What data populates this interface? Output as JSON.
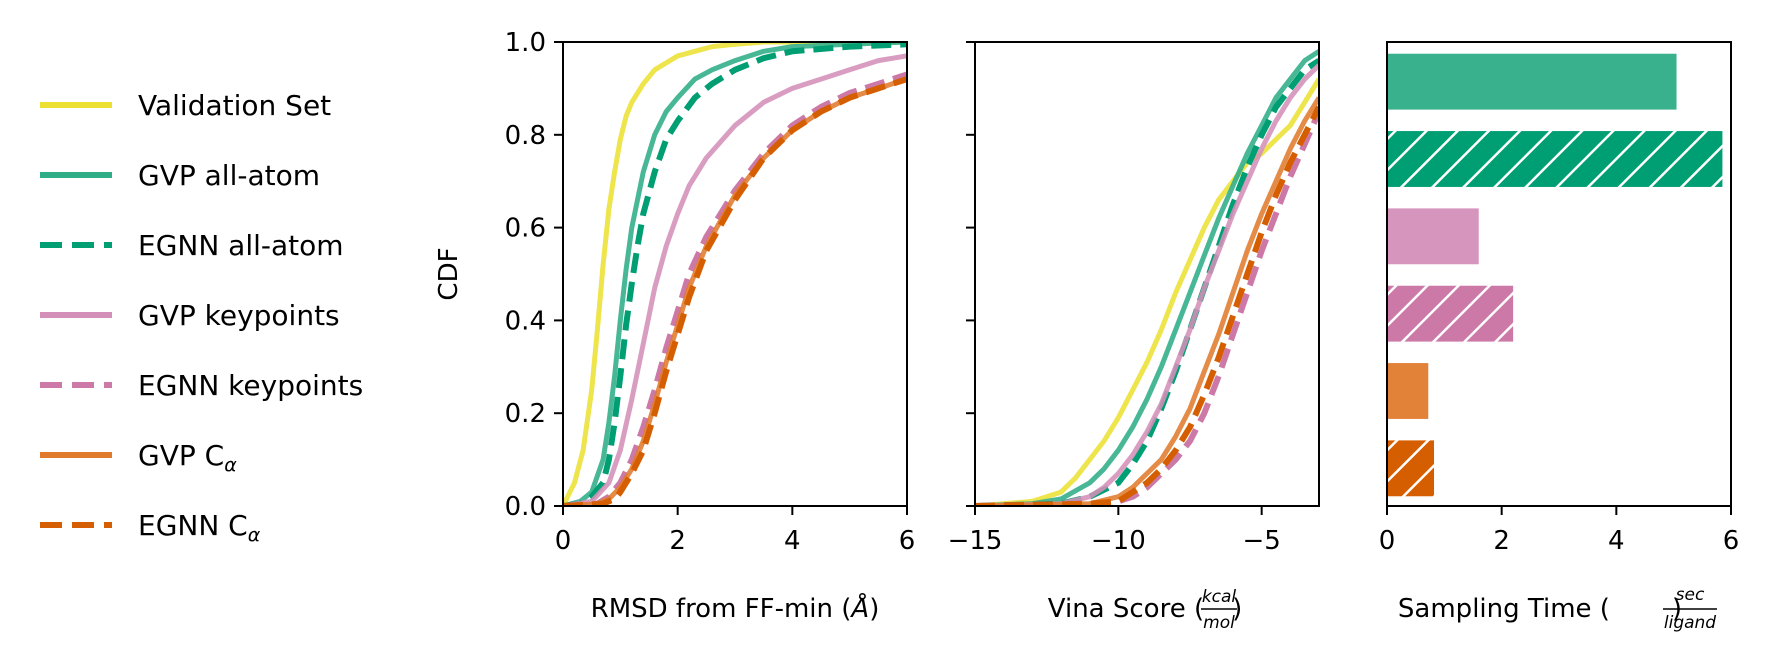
{
  "legend": {
    "entries": [
      {
        "key": "validation",
        "label": "Validation Set",
        "color": "#ECE032",
        "dash": false
      },
      {
        "key": "gvp_all",
        "label": "GVP all-atom",
        "color": "#2EAD87",
        "dash": false
      },
      {
        "key": "egnn_all",
        "label": "EGNN all-atom",
        "color": "#009E73",
        "dash": true
      },
      {
        "key": "gvp_kp",
        "label": "GVP keypoints",
        "color": "#D48FB8",
        "dash": false
      },
      {
        "key": "egnn_kp",
        "label": "EGNN keypoints",
        "color": "#CC79A7",
        "dash": true
      },
      {
        "key": "gvp_ca",
        "label": "GVP C",
        "sub": "α",
        "color": "#E07B2E",
        "dash": false
      },
      {
        "key": "egnn_ca",
        "label": "EGNN C",
        "sub": "α",
        "color": "#D55E00",
        "dash": true
      }
    ]
  },
  "chart_data": [
    {
      "type": "line",
      "title": "",
      "xlabel": "RMSD from FF-min (Å)",
      "xlabel_main": "RMSD from FF-min (",
      "xlabel_unit": "Å",
      "xlabel_close": ")",
      "ylabel": "CDF",
      "xlim": [
        0,
        6
      ],
      "ylim": [
        0,
        1
      ],
      "xticks": [
        0,
        2,
        4,
        6
      ],
      "xtick_labels": [
        "0",
        "2",
        "4",
        "6"
      ],
      "yticks": [
        0,
        0.2,
        0.4,
        0.6,
        0.8,
        1.0
      ],
      "ytick_labels": [
        "0.0",
        "0.2",
        "0.4",
        "0.6",
        "0.8",
        "1.0"
      ],
      "series": [
        {
          "key": "validation",
          "x": [
            0,
            0.2,
            0.35,
            0.5,
            0.6,
            0.7,
            0.8,
            0.9,
            1.0,
            1.1,
            1.2,
            1.4,
            1.6,
            1.8,
            2.0,
            2.3,
            2.6,
            3.0,
            3.5,
            4.0,
            6.0
          ],
          "y": [
            0,
            0.05,
            0.12,
            0.25,
            0.38,
            0.52,
            0.64,
            0.72,
            0.79,
            0.84,
            0.87,
            0.91,
            0.94,
            0.955,
            0.97,
            0.98,
            0.99,
            0.995,
            1.0,
            1.0,
            1.0
          ]
        },
        {
          "key": "gvp_all",
          "x": [
            0,
            0.3,
            0.5,
            0.7,
            0.8,
            0.9,
            1.0,
            1.1,
            1.2,
            1.4,
            1.6,
            1.8,
            2.0,
            2.3,
            2.6,
            3.0,
            3.5,
            4.0,
            5.0,
            6.0
          ],
          "y": [
            0,
            0.01,
            0.03,
            0.1,
            0.18,
            0.28,
            0.4,
            0.51,
            0.6,
            0.72,
            0.8,
            0.85,
            0.88,
            0.92,
            0.94,
            0.96,
            0.98,
            0.99,
            0.995,
            1.0
          ]
        },
        {
          "key": "egnn_all",
          "x": [
            0,
            0.3,
            0.5,
            0.7,
            0.8,
            0.9,
            1.0,
            1.1,
            1.2,
            1.3,
            1.4,
            1.6,
            1.8,
            2.0,
            2.3,
            2.6,
            3.0,
            3.5,
            4.0,
            5.0,
            6.0
          ],
          "y": [
            0,
            0.005,
            0.02,
            0.05,
            0.1,
            0.18,
            0.28,
            0.39,
            0.48,
            0.56,
            0.63,
            0.72,
            0.79,
            0.83,
            0.88,
            0.91,
            0.94,
            0.965,
            0.98,
            0.99,
            0.995
          ]
        },
        {
          "key": "gvp_kp",
          "x": [
            0,
            0.5,
            0.8,
            1.0,
            1.2,
            1.4,
            1.6,
            1.8,
            2.0,
            2.2,
            2.5,
            3.0,
            3.5,
            4.0,
            4.5,
            5.0,
            5.5,
            6.0
          ],
          "y": [
            0,
            0.01,
            0.05,
            0.12,
            0.23,
            0.35,
            0.47,
            0.56,
            0.63,
            0.69,
            0.75,
            0.82,
            0.87,
            0.9,
            0.92,
            0.94,
            0.96,
            0.97
          ]
        },
        {
          "key": "egnn_kp",
          "x": [
            0,
            0.6,
            0.8,
            1.0,
            1.2,
            1.4,
            1.6,
            1.8,
            2.0,
            2.2,
            2.5,
            3.0,
            3.5,
            4.0,
            4.5,
            5.0,
            5.5,
            6.0
          ],
          "y": [
            0,
            0.005,
            0.02,
            0.05,
            0.1,
            0.17,
            0.25,
            0.34,
            0.42,
            0.5,
            0.58,
            0.68,
            0.76,
            0.82,
            0.86,
            0.89,
            0.91,
            0.93
          ]
        },
        {
          "key": "gvp_ca",
          "x": [
            0,
            0.6,
            0.8,
            1.0,
            1.2,
            1.4,
            1.6,
            1.8,
            2.0,
            2.2,
            2.5,
            3.0,
            3.5,
            4.0,
            4.5,
            5.0,
            5.5,
            6.0
          ],
          "y": [
            0,
            0.005,
            0.015,
            0.04,
            0.08,
            0.14,
            0.22,
            0.31,
            0.39,
            0.47,
            0.56,
            0.67,
            0.75,
            0.81,
            0.85,
            0.88,
            0.9,
            0.92
          ]
        },
        {
          "key": "egnn_ca",
          "x": [
            0,
            0.7,
            0.9,
            1.0,
            1.2,
            1.4,
            1.6,
            1.8,
            2.0,
            2.2,
            2.5,
            3.0,
            3.5,
            4.0,
            4.5,
            5.0,
            5.5,
            6.0
          ],
          "y": [
            0,
            0.005,
            0.015,
            0.03,
            0.07,
            0.12,
            0.2,
            0.29,
            0.37,
            0.45,
            0.55,
            0.66,
            0.75,
            0.81,
            0.85,
            0.88,
            0.9,
            0.92
          ]
        }
      ]
    },
    {
      "type": "line",
      "title": "",
      "xlabel": "Vina Score (kcal/mol)",
      "xlabel_main": "Vina Score (",
      "xlabel_num": "kcal",
      "xlabel_den": "mol",
      "xlabel_close": ")",
      "xlim": [
        -15,
        -3
      ],
      "ylim": [
        0,
        1
      ],
      "xticks": [
        -15,
        -10,
        -5
      ],
      "xtick_labels": [
        "−15",
        "−10",
        "−5"
      ],
      "yticks": [
        0,
        0.2,
        0.4,
        0.6,
        0.8,
        1.0
      ],
      "series": [
        {
          "key": "validation",
          "x": [
            -15,
            -13,
            -12,
            -11.5,
            -11,
            -10.5,
            -10,
            -9.5,
            -9,
            -8.5,
            -8,
            -7.5,
            -7,
            -6.5,
            -6,
            -5.5,
            -5,
            -4.5,
            -4,
            -3.5,
            -3
          ],
          "y": [
            0,
            0.01,
            0.03,
            0.06,
            0.1,
            0.14,
            0.19,
            0.25,
            0.31,
            0.38,
            0.46,
            0.53,
            0.6,
            0.66,
            0.7,
            0.74,
            0.76,
            0.79,
            0.82,
            0.87,
            0.92
          ]
        },
        {
          "key": "gvp_all",
          "x": [
            -15,
            -13,
            -12,
            -11,
            -10.5,
            -10,
            -9.5,
            -9,
            -8.5,
            -8,
            -7.5,
            -7,
            -6.5,
            -6,
            -5.5,
            -5,
            -4.5,
            -4,
            -3.5,
            -3
          ],
          "y": [
            0,
            0.005,
            0.015,
            0.05,
            0.08,
            0.12,
            0.17,
            0.23,
            0.3,
            0.38,
            0.46,
            0.54,
            0.62,
            0.69,
            0.76,
            0.82,
            0.88,
            0.92,
            0.96,
            0.98
          ]
        },
        {
          "key": "egnn_all",
          "x": [
            -15,
            -12,
            -11,
            -10,
            -9.5,
            -9,
            -8.5,
            -8,
            -7.5,
            -7,
            -6.5,
            -6,
            -5.5,
            -5,
            -4.5,
            -4,
            -3.5,
            -3
          ],
          "y": [
            0,
            0.005,
            0.02,
            0.05,
            0.09,
            0.14,
            0.21,
            0.29,
            0.38,
            0.47,
            0.56,
            0.65,
            0.73,
            0.8,
            0.86,
            0.9,
            0.94,
            0.96
          ]
        },
        {
          "key": "gvp_kp",
          "x": [
            -15,
            -12,
            -11,
            -10.5,
            -10,
            -9.5,
            -9,
            -8.5,
            -8,
            -7.5,
            -7,
            -6.5,
            -6,
            -5.5,
            -5,
            -4.5,
            -4,
            -3.5,
            -3
          ],
          "y": [
            0,
            0.005,
            0.02,
            0.04,
            0.07,
            0.11,
            0.16,
            0.22,
            0.3,
            0.38,
            0.47,
            0.55,
            0.63,
            0.7,
            0.77,
            0.83,
            0.88,
            0.92,
            0.95
          ]
        },
        {
          "key": "egnn_kp",
          "x": [
            -15,
            -11,
            -10,
            -9.5,
            -9,
            -8.5,
            -8,
            -7.5,
            -7,
            -6.5,
            -6,
            -5.5,
            -5,
            -4.5,
            -4,
            -3.5,
            -3
          ],
          "y": [
            0,
            0.005,
            0.01,
            0.02,
            0.04,
            0.07,
            0.1,
            0.14,
            0.2,
            0.28,
            0.37,
            0.46,
            0.55,
            0.63,
            0.71,
            0.78,
            0.85
          ]
        },
        {
          "key": "gvp_ca",
          "x": [
            -15,
            -11,
            -10,
            -9.5,
            -9,
            -8.5,
            -8,
            -7.5,
            -7,
            -6.5,
            -6,
            -5.5,
            -5,
            -4.5,
            -4,
            -3.5,
            -3
          ],
          "y": [
            0,
            0.005,
            0.02,
            0.04,
            0.07,
            0.1,
            0.15,
            0.21,
            0.29,
            0.37,
            0.46,
            0.55,
            0.63,
            0.7,
            0.77,
            0.83,
            0.88
          ]
        },
        {
          "key": "egnn_ca",
          "x": [
            -15,
            -11,
            -10,
            -9.5,
            -9,
            -8.5,
            -8,
            -7.5,
            -7,
            -6.5,
            -6,
            -5.5,
            -5,
            -4.5,
            -4,
            -3.5,
            -3
          ],
          "y": [
            0,
            0.005,
            0.01,
            0.03,
            0.05,
            0.08,
            0.12,
            0.17,
            0.24,
            0.32,
            0.41,
            0.5,
            0.59,
            0.67,
            0.74,
            0.8,
            0.86
          ]
        }
      ]
    },
    {
      "type": "bar",
      "orientation": "horizontal",
      "title": "",
      "xlabel": "Sampling Time (sec/ligand)",
      "xlabel_main": "Sampling Time (",
      "xlabel_num": "sec",
      "xlabel_den": "ligand",
      "xlabel_close": ")",
      "xlim": [
        0,
        6
      ],
      "xticks": [
        0,
        2,
        4,
        6
      ],
      "xtick_labels": [
        "0",
        "2",
        "4",
        "6"
      ],
      "categories": [
        "GVP all-atom",
        "EGNN all-atom",
        "GVP keypoints",
        "EGNN keypoints",
        "GVP Cα",
        "EGNN Cα"
      ],
      "values": [
        5.05,
        5.85,
        1.6,
        2.2,
        0.72,
        0.82
      ],
      "hatched": [
        false,
        true,
        false,
        true,
        false,
        true
      ],
      "colors": [
        "#2EAD87",
        "#009E73",
        "#D48FB8",
        "#CC79A7",
        "#E07B2E",
        "#D55E00"
      ]
    }
  ]
}
